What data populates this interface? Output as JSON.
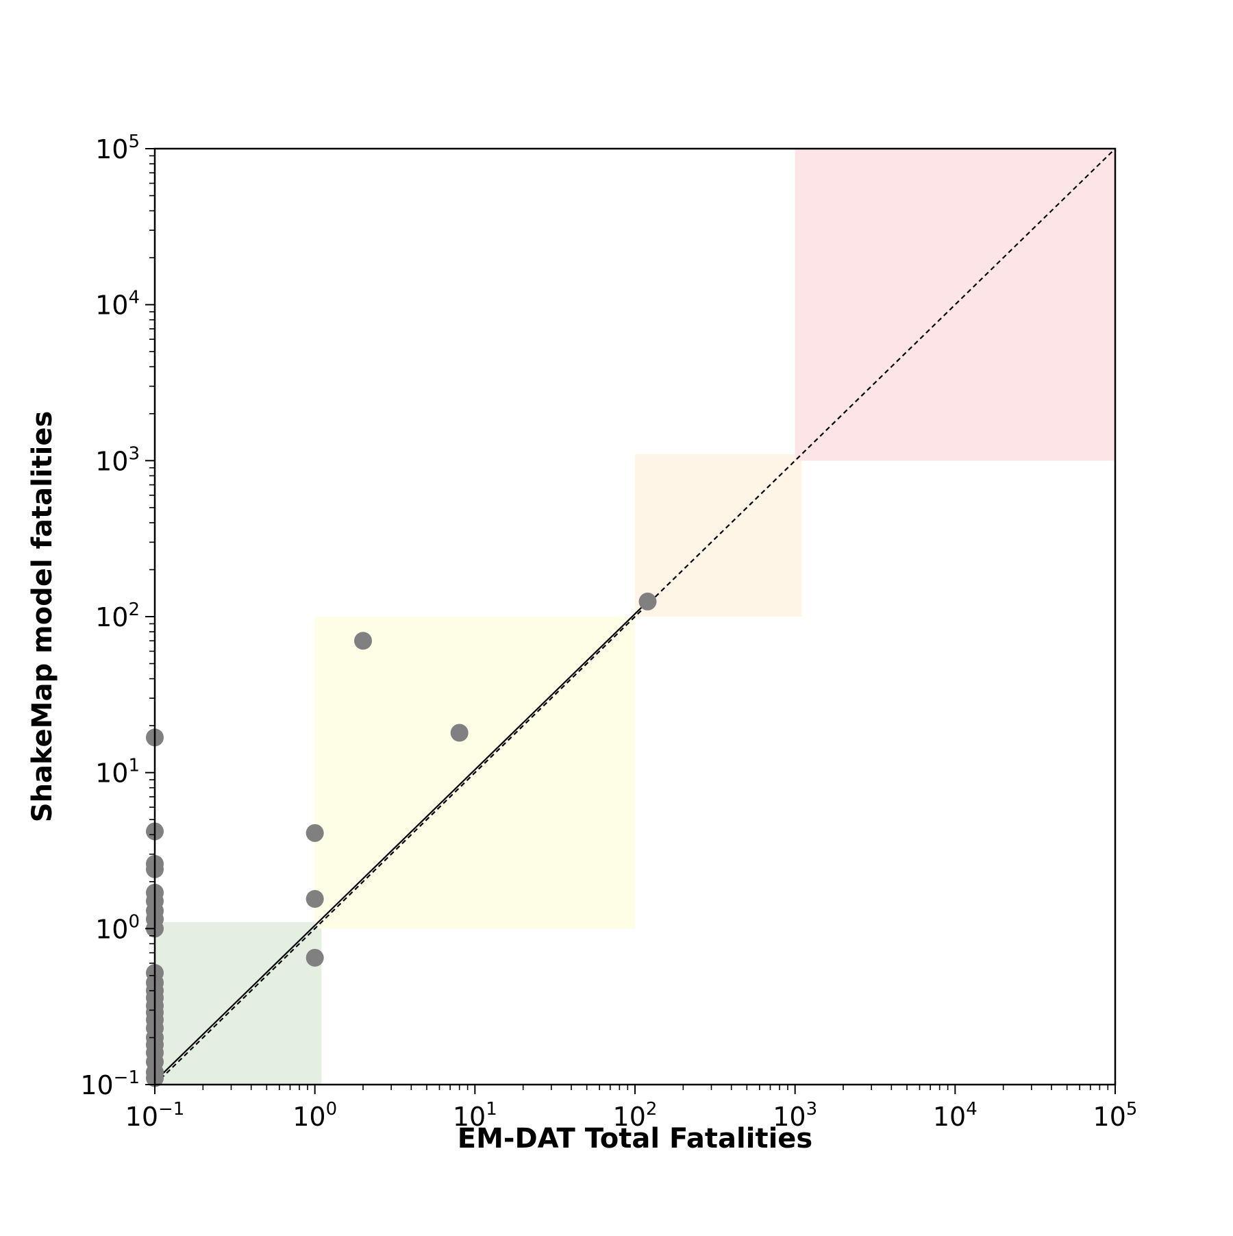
{
  "chart_data": {
    "type": "scatter",
    "xlabel": "EM-DAT Total Fatalities",
    "ylabel": "ShakeMap model fatalities",
    "xscale": "log",
    "yscale": "log",
    "xlim": [
      0.1,
      100000
    ],
    "ylim": [
      0.1,
      100000
    ],
    "grid": false,
    "legend": "none",
    "ticks": {
      "x": [
        {
          "value": 0.1,
          "base": "10",
          "exp": "−1"
        },
        {
          "value": 1,
          "base": "10",
          "exp": "0"
        },
        {
          "value": 10,
          "base": "10",
          "exp": "1"
        },
        {
          "value": 100,
          "base": "10",
          "exp": "2"
        },
        {
          "value": 1000,
          "base": "10",
          "exp": "3"
        },
        {
          "value": 10000,
          "base": "10",
          "exp": "4"
        },
        {
          "value": 100000,
          "base": "10",
          "exp": "5"
        }
      ],
      "y": [
        {
          "value": 0.1,
          "base": "10",
          "exp": "−1"
        },
        {
          "value": 1,
          "base": "10",
          "exp": "0"
        },
        {
          "value": 10,
          "base": "10",
          "exp": "1"
        },
        {
          "value": 100,
          "base": "10",
          "exp": "2"
        },
        {
          "value": 1000,
          "base": "10",
          "exp": "3"
        },
        {
          "value": 10000,
          "base": "10",
          "exp": "4"
        },
        {
          "value": 100000,
          "base": "10",
          "exp": "5"
        }
      ]
    },
    "shaded_regions": [
      {
        "x": [
          0.1,
          1.1
        ],
        "y": [
          0.1,
          1.1
        ],
        "color": "#e4efe2"
      },
      {
        "x": [
          1,
          100
        ],
        "y": [
          1,
          100
        ],
        "color": "#fefee7"
      },
      {
        "x": [
          100,
          1100
        ],
        "y": [
          100,
          1100
        ],
        "color": "#fef5e7"
      },
      {
        "x": [
          1000,
          100000
        ],
        "y": [
          1000,
          100000
        ],
        "color": "#fde4e6"
      }
    ],
    "reference_lines": [
      {
        "style": "dashed",
        "color": "#000000",
        "x": [
          0.1,
          100000
        ],
        "y": [
          0.1,
          100000
        ]
      },
      {
        "style": "solid",
        "color": "#000000",
        "x": [
          0.1,
          120
        ],
        "y": [
          0.105,
          125
        ]
      }
    ],
    "series": [
      {
        "color": "#808080",
        "points": [
          {
            "x": 120,
            "y": 125
          },
          {
            "x": 2,
            "y": 70
          },
          {
            "x": 8,
            "y": 18
          },
          {
            "x": 1,
            "y": 4.1
          },
          {
            "x": 1,
            "y": 1.55
          },
          {
            "x": 1,
            "y": 0.65
          },
          {
            "x": 0.1,
            "y": 16.8
          },
          {
            "x": 0.1,
            "y": 4.2
          },
          {
            "x": 0.1,
            "y": 2.6
          },
          {
            "x": 0.1,
            "y": 2.4
          },
          {
            "x": 0.1,
            "y": 1.7
          },
          {
            "x": 0.1,
            "y": 1.5
          },
          {
            "x": 0.1,
            "y": 1.3
          },
          {
            "x": 0.1,
            "y": 1.15
          },
          {
            "x": 0.1,
            "y": 1.0
          },
          {
            "x": 0.1,
            "y": 0.52
          },
          {
            "x": 0.1,
            "y": 0.45
          },
          {
            "x": 0.1,
            "y": 0.4
          },
          {
            "x": 0.1,
            "y": 0.36
          },
          {
            "x": 0.1,
            "y": 0.32
          },
          {
            "x": 0.1,
            "y": 0.29
          },
          {
            "x": 0.1,
            "y": 0.26
          },
          {
            "x": 0.1,
            "y": 0.23
          },
          {
            "x": 0.1,
            "y": 0.2
          },
          {
            "x": 0.1,
            "y": 0.18
          },
          {
            "x": 0.1,
            "y": 0.16
          },
          {
            "x": 0.1,
            "y": 0.14
          },
          {
            "x": 0.1,
            "y": 0.12
          },
          {
            "x": 0.1,
            "y": 0.11
          }
        ]
      }
    ]
  }
}
